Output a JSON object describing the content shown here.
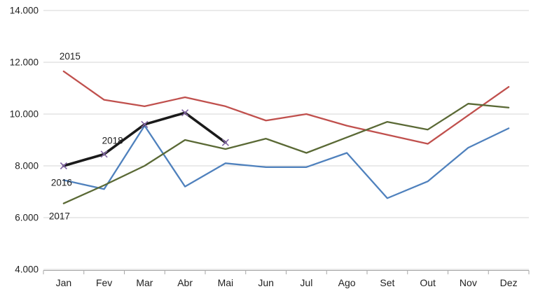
{
  "chart_data": {
    "type": "line",
    "title": "",
    "xlabel": "",
    "ylabel": "",
    "categories": [
      "Jan",
      "Fev",
      "Mar",
      "Abr",
      "Mai",
      "Jun",
      "Jul",
      "Ago",
      "Set",
      "Out",
      "Nov",
      "Dez"
    ],
    "series": [
      {
        "name": "2015",
        "color": "#C0504D",
        "values": [
          11650,
          10550,
          10300,
          10650,
          10300,
          9750,
          10000,
          9550,
          9200,
          8850,
          9950,
          11050
        ]
      },
      {
        "name": "2016",
        "color": "#4F81BD",
        "values": [
          7450,
          7100,
          9550,
          7200,
          8100,
          7950,
          7950,
          8500,
          6750,
          7400,
          8700,
          9450
        ]
      },
      {
        "name": "2017",
        "color": "#5A6935",
        "values": [
          6550,
          7250,
          8000,
          9000,
          8650,
          9050,
          8500,
          9100,
          9700,
          9400,
          10400,
          10250
        ]
      },
      {
        "name": "2018",
        "color": "#1A1A1A",
        "marker": "x",
        "marker_color": "#8064A2",
        "values": [
          8000,
          8450,
          9600,
          10050,
          8900
        ]
      }
    ],
    "ylim": [
      4000,
      14000
    ],
    "ytick_step": 2000,
    "ytick_labels": [
      "4.000",
      "6.000",
      "8.000",
      "10.000",
      "12.000",
      "14.000"
    ],
    "grid": "horizontal",
    "legend_position": "inline-labels-near-first-points",
    "style": {
      "grid_color": "#D6D6D6",
      "axis_color": "#A6A6A6",
      "text_color": "#1F1F1F",
      "background": "#FFFFFF"
    }
  }
}
